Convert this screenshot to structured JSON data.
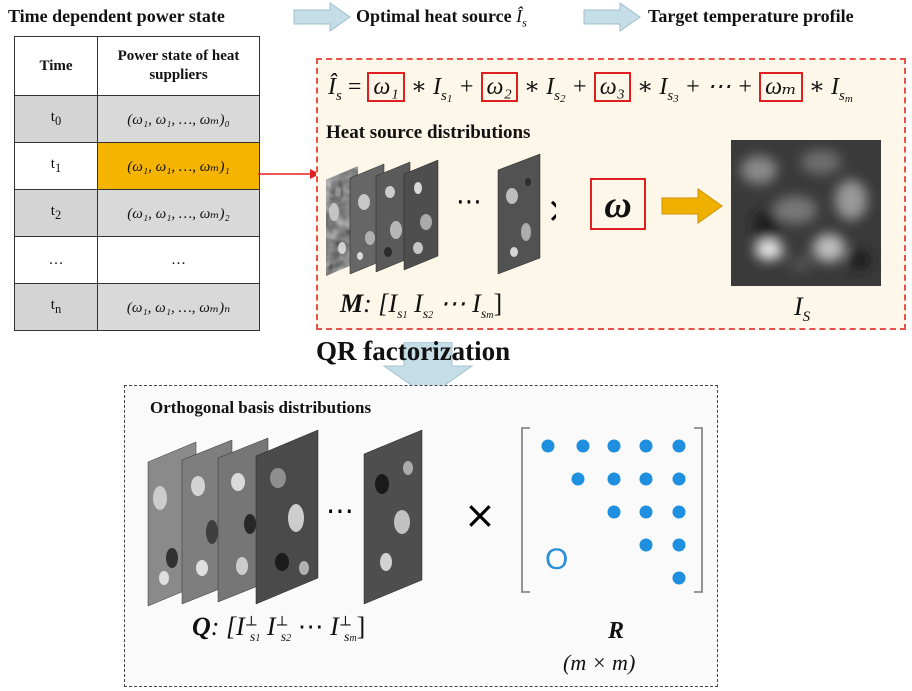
{
  "flow": {
    "step1": "Time dependent power state",
    "step2": "Optimal heat source",
    "step2_symbol": "Î",
    "step2_sub": "s",
    "step3": "Target temperature profile"
  },
  "table": {
    "header_time": "Time",
    "header_power": "Power state of heat suppliers",
    "rows": [
      {
        "t": "t",
        "t_sub": "0",
        "power": "(ω₁, ω₁, …, ωₘ)₀"
      },
      {
        "t": "t",
        "t_sub": "1",
        "power": "(ω₁, ω₁, …, ωₘ)₁"
      },
      {
        "t": "t",
        "t_sub": "2",
        "power": "(ω₁, ω₁, …, ωₘ)₂"
      },
      {
        "t": "…",
        "t_sub": "",
        "power": "…"
      },
      {
        "t": "t",
        "t_sub": "n",
        "power": "(ω₁, ω₁, …, ωₘ)ₙ"
      }
    ]
  },
  "heat_panel": {
    "formula_lhs": "Î",
    "formula_lhs_sub": "s",
    "w1": "ω₁",
    "w2": "ω₂",
    "w3": "ω₃",
    "wm": "ωₘ",
    "I": "I",
    "s1": "s",
    "s1n": "1",
    "s2": "s",
    "s2n": "2",
    "s3": "s",
    "s3n": "3",
    "sm": "s",
    "smn": "m",
    "ops_star": "∗",
    "ops_plus": "+",
    "ops_dots": "⋯",
    "title": "Heat source distributions",
    "dots": "⋯",
    "times": "×",
    "omega": "ω",
    "M_label": "M",
    "M_formula": ": [I",
    "M_rest": "  I",
    "M_dots": " ⋯ I",
    "result_label": "I",
    "result_sub": "S"
  },
  "qr": {
    "title": "QR factorization",
    "panel_title": "Orthogonal basis distributions",
    "dots": "⋯",
    "times": "×",
    "Q_label": "Q",
    "Q_formula": ": [I",
    "perp": "⊥",
    "R_label": "R",
    "R_dim": "(m × m)",
    "zero": "O"
  },
  "colors": {
    "arrow_fill": "#c5dde6",
    "highlight": "#f5b400",
    "red": "#e02020",
    "dot_blue": "#1f8fe0",
    "orange_arrow": "#f0b000"
  }
}
